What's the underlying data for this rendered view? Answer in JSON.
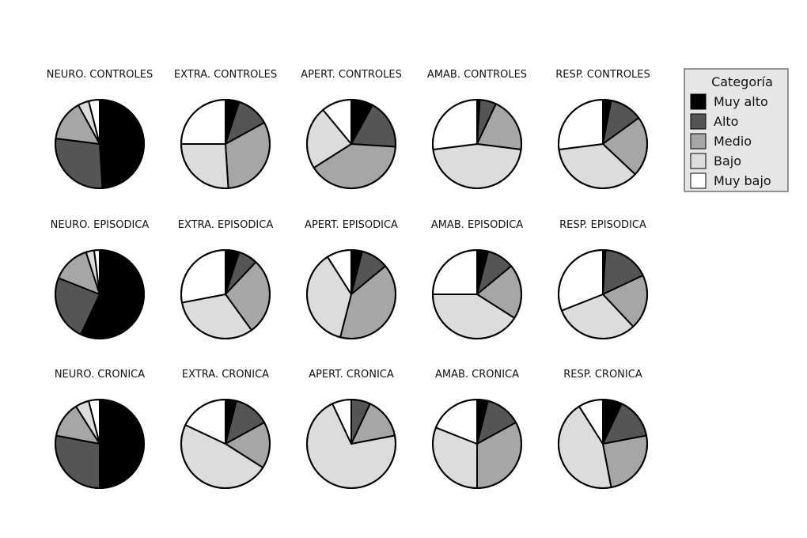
{
  "chart_data": {
    "type": "pie",
    "start_angle": "12 o'clock, clockwise",
    "legend": {
      "title": "Categoría",
      "placement": "right",
      "categories": [
        "Muy alto",
        "Alto",
        "Medio",
        "Bajo",
        "Muy bajo"
      ],
      "colors": [
        "#000000",
        "#555555",
        "#a6a6a6",
        "#dcdcdc",
        "#ffffff"
      ]
    },
    "pies": [
      {
        "title": "NEURO. CONTROLES",
        "values": [
          49,
          28,
          15,
          4,
          4
        ]
      },
      {
        "title": "EXTRA. CONTROLES",
        "values": [
          5,
          12,
          32,
          26,
          25
        ]
      },
      {
        "title": "APERT. CONTROLES",
        "values": [
          8,
          18,
          40,
          23,
          11
        ]
      },
      {
        "title": "AMAB. CONTROLES",
        "values": [
          1,
          6,
          20,
          46,
          27
        ]
      },
      {
        "title": "RESP. CONTROLES",
        "values": [
          3,
          12,
          22,
          36,
          27
        ]
      },
      {
        "title": "NEURO. EPISODICA",
        "values": [
          57,
          24,
          14,
          3,
          2
        ]
      },
      {
        "title": "EXTRA. EPISODICA",
        "values": [
          5,
          7,
          28,
          32,
          28
        ]
      },
      {
        "title": "APERT. EPISODICA",
        "values": [
          4,
          10,
          40,
          37,
          9
        ]
      },
      {
        "title": "AMAB. EPISODICA",
        "values": [
          4,
          10,
          20,
          41,
          25
        ]
      },
      {
        "title": "RESP. EPISODICA",
        "values": [
          1,
          17,
          20,
          31,
          31
        ]
      },
      {
        "title": "NEURO. CRONICA",
        "values": [
          50,
          28,
          13,
          5,
          4
        ]
      },
      {
        "title": "EXTRA. CRONICA",
        "values": [
          4,
          13,
          17,
          48,
          18
        ]
      },
      {
        "title": "APERT. CRONICA",
        "values": [
          0,
          7,
          15,
          71,
          7
        ]
      },
      {
        "title": "AMAB. CRONICA",
        "values": [
          4,
          13,
          33,
          31,
          19
        ]
      },
      {
        "title": "RESP. CRONICA",
        "values": [
          7,
          15,
          25,
          44,
          9
        ]
      }
    ]
  }
}
